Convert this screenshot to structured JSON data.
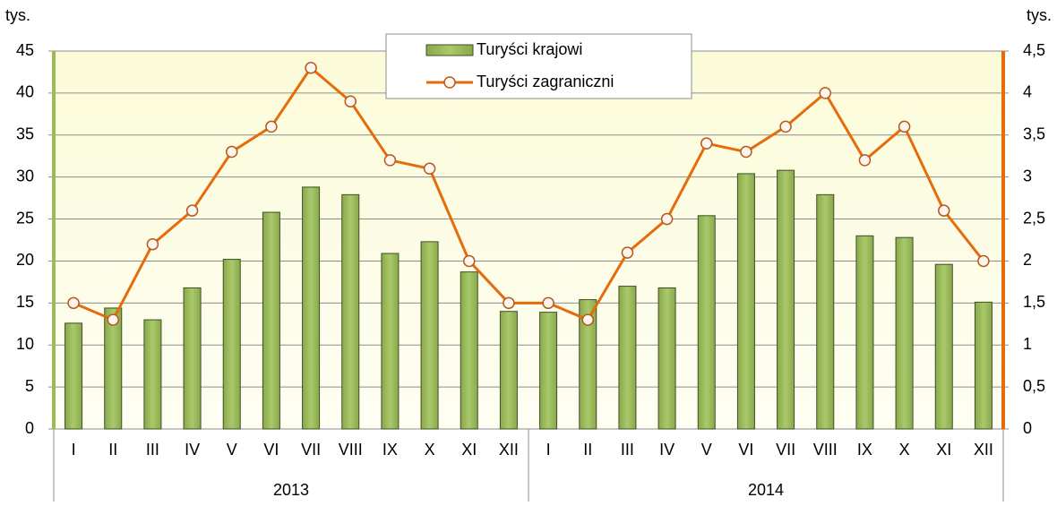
{
  "chart_data": {
    "type": "bar-line",
    "y_unit": "tys.",
    "y2_unit": "tys.",
    "categories": [
      "I",
      "II",
      "III",
      "IV",
      "V",
      "VI",
      "VII",
      "VIII",
      "IX",
      "X",
      "XI",
      "XII",
      "I",
      "II",
      "III",
      "IV",
      "V",
      "VI",
      "VII",
      "VIII",
      "IX",
      "X",
      "XI",
      "XII"
    ],
    "groups": [
      "2013",
      "2014"
    ],
    "series": [
      {
        "name": "Turyści krajowi",
        "type": "bar",
        "color": "#9bbb59",
        "values": [
          12.6,
          14.4,
          13.0,
          16.8,
          20.2,
          25.8,
          28.8,
          27.9,
          20.9,
          22.3,
          18.7,
          14.0,
          13.9,
          15.4,
          17.0,
          16.8,
          25.4,
          30.4,
          30.8,
          27.9,
          23.0,
          22.8,
          19.6,
          15.1
        ]
      },
      {
        "name": "Turyści zagraniczni",
        "type": "line",
        "axis": "y2",
        "color": "#e46c0a",
        "values": [
          1.5,
          1.3,
          2.2,
          2.6,
          3.3,
          3.6,
          4.3,
          3.9,
          3.2,
          3.1,
          2.0,
          1.5,
          1.5,
          1.3,
          2.1,
          2.5,
          3.4,
          3.3,
          3.6,
          4.0,
          3.2,
          3.6,
          2.6,
          2.0
        ]
      }
    ],
    "ylim": [
      0,
      45
    ],
    "yticks": [
      0,
      5,
      10,
      15,
      20,
      25,
      30,
      35,
      40,
      45
    ],
    "y2lim": [
      0,
      4.5
    ],
    "y2ticks": [
      0,
      {
        "value": 0.5,
        "label": "0,5"
      },
      1,
      {
        "value": 1.5,
        "label": "1,5"
      },
      2,
      {
        "value": 2.5,
        "label": "2,5"
      },
      3,
      {
        "value": 3.5,
        "label": "3,5"
      },
      4,
      {
        "value": 4.5,
        "label": "4,5"
      }
    ],
    "grid": true,
    "legend": "top"
  }
}
